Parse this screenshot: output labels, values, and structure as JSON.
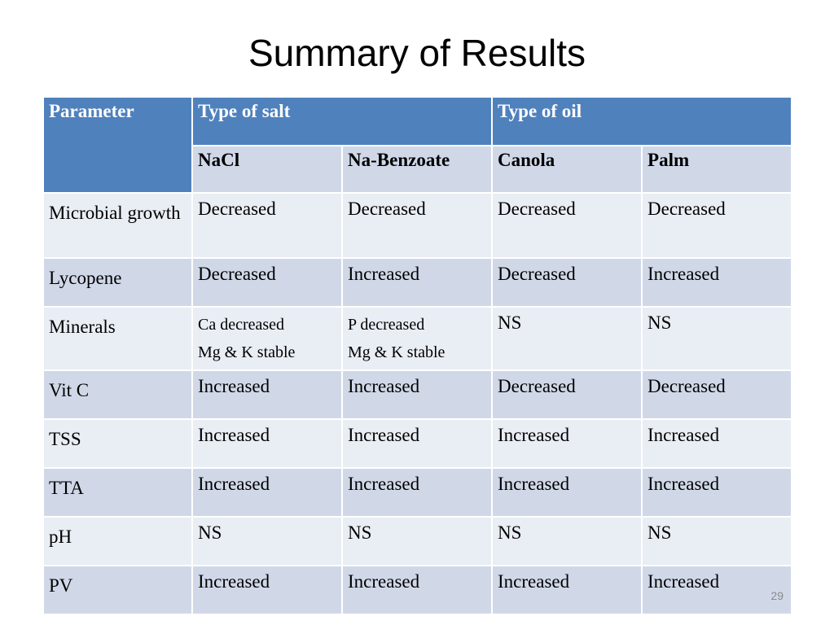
{
  "title": "Summary of Results",
  "header": {
    "parameter": "Parameter",
    "salt_group": "Type of salt",
    "oil_group": "Type of oil",
    "columns": [
      "NaCl",
      "Na-Benzoate",
      "Canola",
      "Palm"
    ]
  },
  "rows": [
    {
      "param": "Microbial growth",
      "values": [
        "Decreased",
        "Decreased",
        "Decreased",
        "Decreased"
      ]
    },
    {
      "param": "Lycopene",
      "values": [
        "Decreased",
        "Increased",
        "Decreased",
        "Increased"
      ]
    },
    {
      "param": "Minerals",
      "values": [
        "Ca decreased",
        "P decreased",
        "NS",
        "NS"
      ],
      "values_line2": [
        "Mg & K stable",
        "Mg & K stable",
        "",
        ""
      ]
    },
    {
      "param": "Vit C",
      "values": [
        "Increased",
        "Increased",
        "Decreased",
        "Decreased"
      ]
    },
    {
      "param": "TSS",
      "values": [
        "Increased",
        "Increased",
        "Increased",
        "Increased"
      ]
    },
    {
      "param": "TTA",
      "values": [
        "Increased",
        "Increased",
        "Increased",
        "Increased"
      ]
    },
    {
      "param": "pH",
      "values": [
        "NS",
        "NS",
        "NS",
        "NS"
      ]
    },
    {
      "param": "PV",
      "values": [
        "Increased",
        "Increased",
        "Increased",
        "Increased"
      ]
    }
  ],
  "page_number": "29",
  "colors": {
    "header_blue": "#4f81bd",
    "band_dark": "#d0d8e8",
    "band_light": "#e9edf4"
  }
}
